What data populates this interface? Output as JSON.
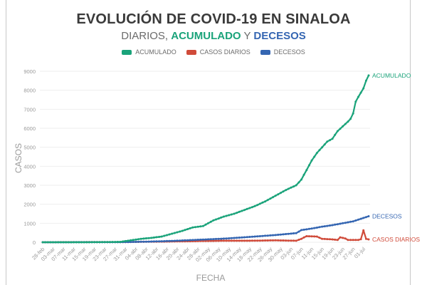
{
  "chart_data": {
    "type": "line",
    "title": "EVOLUCIÓN DE COVID-19 EN SINALOA",
    "subtitle": {
      "part1": "DIARIOS,",
      "part2": "ACUMULADO",
      "part3": "Y",
      "part4": "DECESOS"
    },
    "xlabel": "FECHA",
    "ylabel": "CASOS",
    "ylim": [
      0,
      9000
    ],
    "yticks": [
      "0",
      "1000",
      "2000",
      "3000",
      "4000",
      "5000",
      "6000",
      "7000",
      "8000",
      "9000"
    ],
    "xticks": [
      "28-feb",
      "03-mar",
      "07-mar",
      "11-mar",
      "15-mar",
      "19-mar",
      "23-mar",
      "27-mar",
      "31-mar",
      "04-abr",
      "08-abr",
      "12-abr",
      "16-abr",
      "20-abr",
      "24-abr",
      "28-abr",
      "02-may",
      "06-may",
      "10-may",
      "14-may",
      "18-may",
      "22-may",
      "26-may",
      "30-may",
      "03-jun",
      "07-jun",
      "11-jun",
      "15-jun",
      "19-jun",
      "23-jun",
      "27-jun",
      "01-jul"
    ],
    "grid": true,
    "legend_position": "top",
    "n_days": 126,
    "series": [
      {
        "name": "ACUMULADO",
        "end_label": "ACUMULADO",
        "color": "#1aa37a",
        "anchors": [
          [
            0,
            0
          ],
          [
            20,
            2
          ],
          [
            30,
            20
          ],
          [
            34,
            100
          ],
          [
            38,
            180
          ],
          [
            42,
            230
          ],
          [
            46,
            300
          ],
          [
            50,
            450
          ],
          [
            54,
            600
          ],
          [
            58,
            780
          ],
          [
            62,
            850
          ],
          [
            66,
            1150
          ],
          [
            70,
            1350
          ],
          [
            74,
            1500
          ],
          [
            78,
            1700
          ],
          [
            82,
            1900
          ],
          [
            86,
            2150
          ],
          [
            90,
            2450
          ],
          [
            94,
            2750
          ],
          [
            98,
            3000
          ],
          [
            100,
            3300
          ],
          [
            102,
            3800
          ],
          [
            104,
            4300
          ],
          [
            106,
            4700
          ],
          [
            108,
            5000
          ],
          [
            110,
            5300
          ],
          [
            112,
            5450
          ],
          [
            114,
            5850
          ],
          [
            116,
            6100
          ],
          [
            118,
            6350
          ],
          [
            119,
            6500
          ],
          [
            120,
            6780
          ],
          [
            121,
            7400
          ],
          [
            122,
            7650
          ],
          [
            124,
            8100
          ],
          [
            125,
            8500
          ],
          [
            126,
            8780
          ]
        ]
      },
      {
        "name": "CASOS DIARIOS",
        "end_label": "CASOS DIARIOS",
        "color": "#d04b3a",
        "anchors": [
          [
            0,
            0
          ],
          [
            30,
            10
          ],
          [
            50,
            40
          ],
          [
            60,
            60
          ],
          [
            70,
            80
          ],
          [
            80,
            80
          ],
          [
            90,
            100
          ],
          [
            98,
            80
          ],
          [
            100,
            180
          ],
          [
            102,
            320
          ],
          [
            106,
            300
          ],
          [
            108,
            180
          ],
          [
            112,
            150
          ],
          [
            114,
            120
          ],
          [
            115,
            260
          ],
          [
            117,
            200
          ],
          [
            118,
            120
          ],
          [
            122,
            120
          ],
          [
            123,
            160
          ],
          [
            124,
            630
          ],
          [
            125,
            180
          ],
          [
            126,
            150
          ]
        ]
      },
      {
        "name": "DECESOS",
        "end_label": "DECESOS",
        "color": "#3566b2",
        "anchors": [
          [
            0,
            0
          ],
          [
            30,
            5
          ],
          [
            40,
            30
          ],
          [
            50,
            70
          ],
          [
            60,
            130
          ],
          [
            70,
            190
          ],
          [
            80,
            280
          ],
          [
            90,
            380
          ],
          [
            98,
            480
          ],
          [
            100,
            640
          ],
          [
            104,
            720
          ],
          [
            108,
            820
          ],
          [
            112,
            900
          ],
          [
            116,
            1000
          ],
          [
            120,
            1100
          ],
          [
            124,
            1280
          ],
          [
            126,
            1370
          ]
        ]
      }
    ]
  }
}
